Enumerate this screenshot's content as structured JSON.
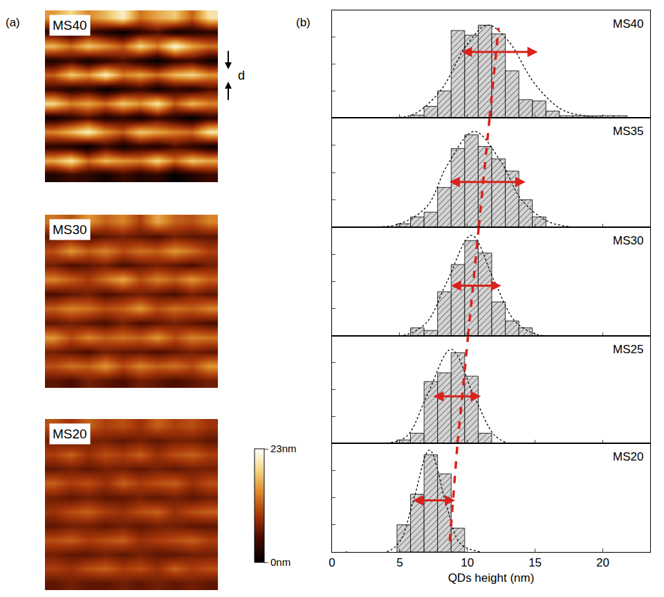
{
  "chart_data": [
    {
      "type": "heatmap",
      "title": "(a)",
      "tick_labels": false,
      "images": [
        {
          "name": "MS40",
          "z": [
            [
              15,
              19,
              14,
              17,
              21,
              13,
              16,
              18,
              12,
              20
            ],
            [
              3,
              1,
              4,
              2,
              0,
              3,
              5,
              1,
              2,
              3
            ],
            [
              17,
              13,
              18,
              15,
              12,
              19,
              14,
              22,
              16,
              13
            ],
            [
              2,
              4,
              1,
              3,
              5,
              2,
              0,
              3,
              4,
              1
            ],
            [
              12,
              18,
              15,
              21,
              14,
              16,
              13,
              17,
              19,
              15
            ],
            [
              4,
              2,
              3,
              0,
              2,
              4,
              1,
              3,
              2,
              5
            ],
            [
              19,
              14,
              16,
              13,
              18,
              15,
              20,
              12,
              17,
              14
            ],
            [
              1,
              3,
              5,
              2,
              3,
              1,
              4,
              2,
              0,
              3
            ],
            [
              14,
              17,
              21,
              15,
              12,
              18,
              16,
              14,
              13,
              20
            ],
            [
              3,
              2,
              0,
              4,
              1,
              3,
              2,
              5,
              3,
              1
            ],
            [
              16,
              20,
              13,
              17,
              15,
              14,
              19,
              13,
              18,
              16
            ],
            [
              2,
              4,
              3,
              1,
              4,
              2,
              3,
              0,
              2,
              4
            ]
          ]
        },
        {
          "name": "MS30",
          "z": [
            [
              13,
              11,
              15,
              12,
              14,
              10,
              16,
              12,
              11,
              14
            ],
            [
              6,
              7,
              5,
              6,
              7,
              6,
              5,
              7,
              6,
              6
            ],
            [
              11,
              15,
              12,
              14,
              11,
              13,
              12,
              15,
              13,
              10
            ],
            [
              7,
              5,
              6,
              7,
              5,
              6,
              7,
              6,
              5,
              7
            ],
            [
              14,
              12,
              10,
              13,
              16,
              11,
              14,
              12,
              15,
              12
            ],
            [
              5,
              6,
              7,
              5,
              6,
              7,
              6,
              5,
              7,
              6
            ],
            [
              12,
              14,
              13,
              11,
              12,
              15,
              11,
              13,
              12,
              14
            ],
            [
              6,
              7,
              6,
              5,
              7,
              5,
              6,
              7,
              6,
              5
            ],
            [
              15,
              11,
              14,
              12,
              13,
              12,
              15,
              11,
              14,
              13
            ],
            [
              7,
              6,
              5,
              7,
              6,
              6,
              5,
              6,
              7,
              6
            ],
            [
              11,
              13,
              12,
              15,
              11,
              14,
              12,
              13,
              11,
              15
            ],
            [
              6,
              5,
              7,
              6,
              5,
              7,
              6,
              5,
              6,
              7
            ]
          ]
        },
        {
          "name": "MS20",
          "z": [
            [
              11,
              9,
              12,
              10,
              11,
              9,
              12,
              10,
              11,
              9
            ],
            [
              7,
              6,
              7,
              7,
              6,
              7,
              6,
              7,
              7,
              6
            ],
            [
              10,
              12,
              9,
              11,
              10,
              12,
              9,
              11,
              12,
              10
            ],
            [
              6,
              7,
              6,
              7,
              7,
              6,
              7,
              6,
              7,
              7
            ],
            [
              12,
              10,
              11,
              9,
              12,
              10,
              11,
              12,
              9,
              11
            ],
            [
              7,
              6,
              7,
              6,
              6,
              7,
              6,
              7,
              6,
              7
            ],
            [
              9,
              11,
              12,
              10,
              9,
              11,
              12,
              9,
              11,
              12
            ],
            [
              6,
              7,
              7,
              6,
              7,
              6,
              7,
              7,
              6,
              6
            ],
            [
              11,
              12,
              10,
              11,
              12,
              9,
              10,
              11,
              12,
              10
            ],
            [
              7,
              6,
              6,
              7,
              6,
              7,
              6,
              6,
              7,
              7
            ],
            [
              10,
              9,
              11,
              12,
              10,
              11,
              9,
              12,
              10,
              11
            ],
            [
              6,
              7,
              6,
              6,
              7,
              6,
              7,
              6,
              7,
              6
            ]
          ]
        }
      ],
      "colorbar": {
        "range": [
          0,
          23
        ],
        "ticks": [
          {
            "value": 0,
            "label": "0nm"
          },
          {
            "value": 23,
            "label": "23nm"
          }
        ]
      },
      "annotations": [
        "d"
      ]
    },
    {
      "type": "histogram",
      "title": "(b)",
      "x_label": "QDs height (nm)",
      "xlim": [
        0,
        23.5
      ],
      "xticks": [
        0,
        5,
        10,
        15,
        20
      ],
      "ylim": [
        0,
        160
      ],
      "yticks": [
        0,
        40,
        80,
        120,
        160
      ],
      "tick_labels": "x",
      "color": "#d4d4d4",
      "series": [
        {
          "name": "MS40",
          "bins": [
            5.8,
            6.8,
            7.8,
            8.8,
            9.8,
            10.8,
            11.8,
            12.8,
            13.8,
            14.8,
            15.8,
            16.8,
            17.8,
            18.8,
            19.8,
            20.8,
            21.8
          ],
          "counts": [
            4,
            17,
            40,
            130,
            123,
            138,
            125,
            70,
            27,
            25,
            10,
            3,
            3,
            3,
            3,
            3
          ],
          "fit": {
            "x": [
              1,
              4,
              6,
              8,
              10,
              11.5,
              13,
              15,
              17,
              19,
              21
            ],
            "y": [
              0,
              0,
              5,
              40,
              110,
              138,
              115,
              50,
              12,
              2,
              0
            ]
          },
          "fwhm": {
            "x": [
              9.5,
              15.2
            ],
            "y": 98
          },
          "trend": {
            "x": [
              11.64,
              12.3
            ],
            "y": [
              0,
              134
            ]
          }
        },
        {
          "name": "MS35",
          "bins": [
            4.8,
            5.8,
            6.8,
            7.8,
            8.8,
            9.8,
            10.8,
            11.8,
            12.8,
            13.8,
            14.8,
            15.8
          ],
          "counts": [
            5,
            15,
            22,
            58,
            115,
            135,
            118,
            100,
            82,
            40,
            15
          ],
          "fit": {
            "x": [
              1,
              3,
              5,
              7,
              8.5,
              10.5,
              12.5,
              14,
              16,
              18
            ],
            "y": [
              0,
              0,
              5,
              30,
              90,
              140,
              95,
              40,
              8,
              0
            ]
          },
          "fwhm": {
            "x": [
              8.6,
              14.3
            ],
            "y": 66
          },
          "trend": {
            "x": [
              10.84,
              11.64
            ],
            "y": [
              0,
              160
            ]
          }
        },
        {
          "name": "MS30",
          "bins": [
            5.8,
            6.8,
            7.8,
            8.8,
            9.8,
            10.8,
            11.8,
            12.8,
            13.8,
            14.8
          ],
          "counts": [
            12,
            8,
            65,
            105,
            140,
            122,
            50,
            22,
            12
          ],
          "fit": {
            "x": [
              1,
              4,
              5.5,
              7,
              8.5,
              10.3,
              12,
              13.5,
              15,
              16
            ],
            "y": [
              0,
              0,
              2,
              20,
              80,
              148,
              80,
              22,
              3,
              0
            ]
          },
          "fwhm": {
            "x": [
              8.7,
              12.5
            ],
            "y": 74
          },
          "trend": {
            "x": [
              10.05,
              10.84
            ],
            "y": [
              0,
              160
            ]
          }
        },
        {
          "name": "MS25",
          "bins": [
            4.8,
            5.8,
            6.8,
            7.8,
            8.8,
            9.8,
            10.8,
            11.8
          ],
          "counts": [
            5,
            15,
            92,
            105,
            135,
            100,
            15
          ],
          "fit": {
            "x": [
              1,
              4,
              5.5,
              7,
              8.8,
              10.5,
              12,
              13
            ],
            "y": [
              0,
              0,
              10,
              70,
              140,
              70,
              12,
              0
            ]
          },
          "fwhm": {
            "x": [
              7.4,
              11.0
            ],
            "y": 70
          },
          "trend": {
            "x": [
              9.27,
              10.05
            ],
            "y": [
              0,
              160
            ]
          }
        },
        {
          "name": "MS20",
          "bins": [
            4.8,
            5.8,
            6.8,
            7.8,
            8.8,
            9.8
          ],
          "counts": [
            40,
            85,
            143,
            115,
            35
          ],
          "fit": {
            "x": [
              1,
              4,
              5,
              6,
              7.2,
              8.5,
              9.5,
              11
            ],
            "y": [
              0,
              0,
              15,
              75,
              150,
              65,
              12,
              0
            ]
          },
          "fwhm": {
            "x": [
              5.9,
              9.1
            ],
            "y": 76
          },
          "trend": {
            "x": [
              8.7,
              9.27
            ],
            "y": [
              16,
              160
            ]
          }
        }
      ]
    }
  ]
}
